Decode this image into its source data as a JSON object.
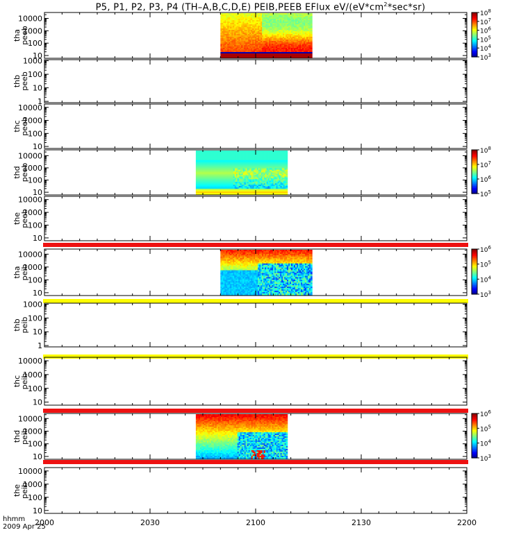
{
  "title": {
    "prefix": "P5, P1, P2, P3, P4 (TH–A,B,C,D,E) PEIB,PEEB EFlux eV/(eV*cm",
    "sup": "2",
    "suffix": "*sec*sr)"
  },
  "time_axis": {
    "label": "hhmm",
    "date": "2009 Apr 25",
    "ticks": [
      "2000",
      "2030",
      "2100",
      "2130",
      "2200"
    ]
  },
  "colors": {
    "flag_red": "#ee1111",
    "flag_yellow": "#ffff00"
  },
  "chart_data": {
    "type": "heatmap",
    "x_range": [
      "20:00",
      "22:00"
    ],
    "panels": [
      {
        "probe": "tha",
        "product": "peeb",
        "ylim": [
          6,
          30000
        ],
        "ylog": true,
        "yticks": [
          "10",
          "100",
          "1000",
          "10000"
        ],
        "data_interval": [
          "20:50",
          "21:16"
        ],
        "colorbar": [
          3,
          8
        ],
        "cb_labels": [
          "10^3",
          "10^4",
          "10^5",
          "10^6",
          "10^7",
          "10^8"
        ]
      },
      {
        "probe": "thb",
        "product": "peeb",
        "ylim": [
          0.8,
          1200
        ],
        "ylog": true,
        "yticks": [
          "1",
          "10",
          "100",
          "1000"
        ],
        "data_interval": null
      },
      {
        "probe": "thc",
        "product": "peeb",
        "ylim": [
          7,
          18000
        ],
        "ylog": true,
        "yticks": [
          "10",
          "100",
          "1000",
          "10000"
        ],
        "data_interval": null
      },
      {
        "probe": "thd",
        "product": "peeb",
        "ylim": [
          6,
          30000
        ],
        "ylog": true,
        "yticks": [
          "10",
          "100",
          "1000",
          "10000"
        ],
        "data_interval": [
          "20:43",
          "21:09"
        ],
        "colorbar": [
          5,
          8
        ],
        "cb_labels": [
          "10^5",
          "10^6",
          "10^7",
          "10^8"
        ]
      },
      {
        "probe": "the",
        "product": "peeb",
        "ylim": [
          6,
          18000
        ],
        "ylog": true,
        "yticks": [
          "10",
          "100",
          "1000",
          "10000"
        ],
        "data_interval": null
      },
      {
        "probe": "tha",
        "product": "peib",
        "ylim": [
          6,
          25000
        ],
        "ylog": true,
        "yticks": [
          "10",
          "100",
          "1000",
          "10000"
        ],
        "data_interval": [
          "20:50",
          "21:16"
        ],
        "colorbar": [
          3,
          6
        ],
        "cb_labels": [
          "10^3",
          "10^4",
          "10^5",
          "10^6"
        ]
      },
      {
        "probe": "thb",
        "product": "peib",
        "ylim": [
          0.8,
          1200
        ],
        "ylog": true,
        "yticks": [
          "1",
          "10",
          "100",
          "1000"
        ],
        "data_interval": null
      },
      {
        "probe": "thc",
        "product": "peib",
        "ylim": [
          6,
          18000
        ],
        "ylog": true,
        "yticks": [
          "10",
          "100",
          "1000",
          "10000"
        ],
        "data_interval": null
      },
      {
        "probe": "thd",
        "product": "peib",
        "ylim": [
          6,
          25000
        ],
        "ylog": true,
        "yticks": [
          "10",
          "100",
          "1000",
          "10000"
        ],
        "data_interval": [
          "20:43",
          "21:09"
        ],
        "colorbar": [
          3,
          6
        ],
        "cb_labels": [
          "10^3",
          "10^4",
          "10^5",
          "10^6"
        ]
      },
      {
        "probe": "the",
        "product": "peib",
        "ylim": [
          6,
          18000
        ],
        "ylog": true,
        "yticks": [
          "10",
          "100",
          "1000",
          "10000"
        ],
        "data_interval": null
      }
    ],
    "flag_bars": [
      "red",
      "red",
      "yellow",
      "yellow",
      "red",
      "red"
    ]
  }
}
